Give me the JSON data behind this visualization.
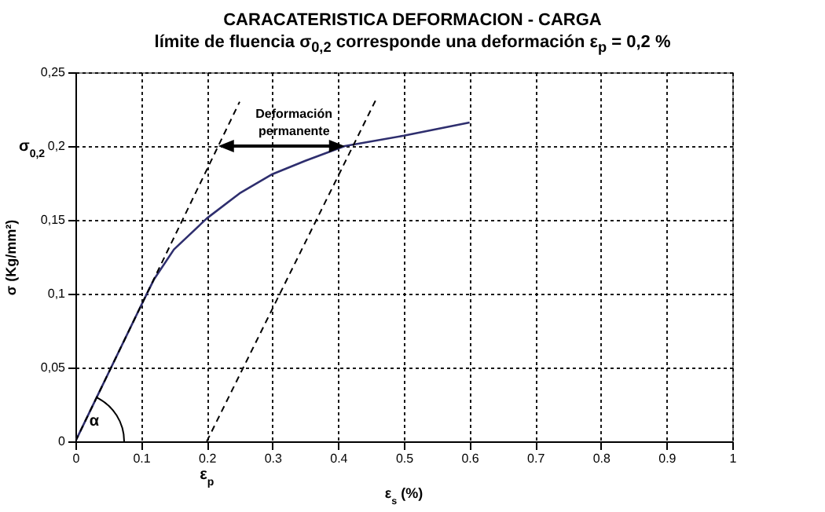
{
  "chart_data": {
    "type": "line",
    "title": "CARACATERISTICA DEFORMACION - CARGA",
    "subtitle": "límite de fluencia σ$_{0,2}$ corresponde una deformación ε$_{p}$ = 0,2 %",
    "xlabel": "ε$_{s}$ (%)",
    "ylabel": "σ (Kg/mm²)",
    "series": [
      {
        "color": "#2e2e6e",
        "line_style": "solid",
        "x": [
          0,
          0.05,
          0.1,
          0.12,
          0.15,
          0.2,
          0.25,
          0.3,
          0.35,
          0.41,
          0.5,
          0.6
        ],
        "values": [
          0,
          0.046,
          0.092,
          0.11,
          0.13,
          0.151,
          0.168,
          0.181,
          0.19,
          0.2,
          0.207,
          0.216
        ]
      },
      {
        "color": "#000000",
        "line_style": "dashed",
        "x": [
          0,
          0.25
        ],
        "values": [
          0,
          0.23
        ]
      },
      {
        "color": "#000000",
        "line_style": "dashed",
        "x": [
          0.2,
          0.457
        ],
        "values": [
          0,
          0.231
        ]
      }
    ],
    "annotations": [
      {
        "text": "Deformación permanente",
        "x": 0.41,
        "y": 0.2
      },
      "σ$_{0,2}$",
      "ε$_{p}$",
      "α"
    ],
    "xlim": [
      0,
      1
    ],
    "xticks": [
      0,
      0.1,
      0.2,
      0.3,
      0.4,
      0.5,
      0.6,
      0.7,
      0.8,
      0.9,
      1
    ],
    "ylim": [
      0,
      0.25
    ],
    "yticks": [
      0,
      {
        "value": 0.05,
        "label": "0,05"
      },
      {
        "value": 0.1,
        "label": "0,1"
      },
      {
        "value": 0.15,
        "label": "0,15"
      },
      {
        "value": 0.2,
        "label": "0,2"
      },
      {
        "value": 0.25,
        "label": "0,25"
      }
    ],
    "grid": true,
    "marker": "none"
  }
}
